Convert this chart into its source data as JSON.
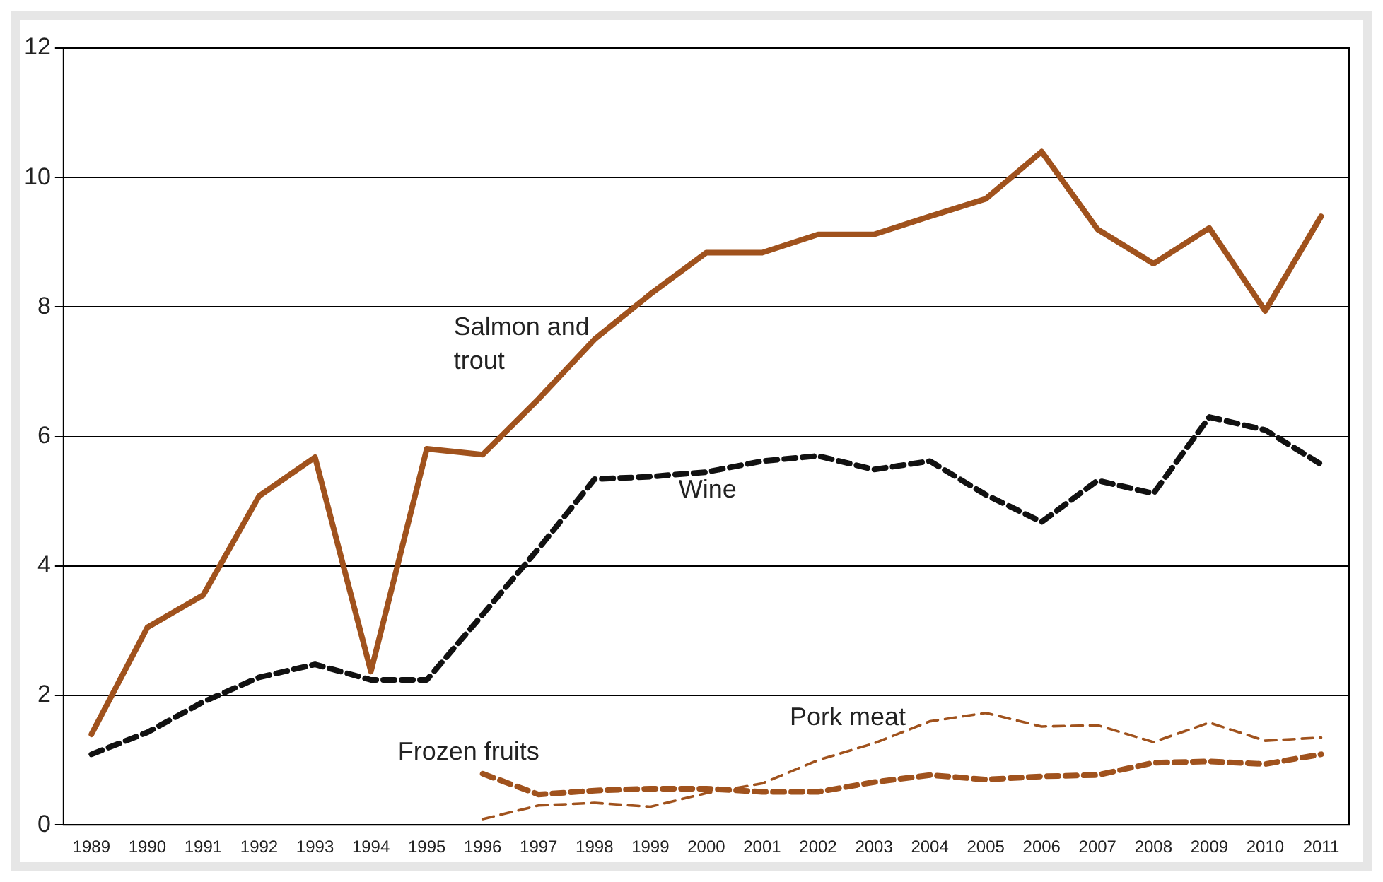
{
  "chart_data": {
    "type": "line",
    "categories": [
      "1989",
      "1990",
      "1991",
      "1992",
      "1993",
      "1994",
      "1995",
      "1996",
      "1997",
      "1998",
      "1999",
      "2000",
      "2001",
      "2002",
      "2003",
      "2004",
      "2005",
      "2006",
      "2007",
      "2008",
      "2009",
      "2010",
      "2011"
    ],
    "ylim": [
      0,
      12
    ],
    "yticks": [
      0,
      2,
      4,
      6,
      8,
      10,
      12
    ],
    "grid": "y",
    "legend": false,
    "marker": "none",
    "series": [
      {
        "name": "Salmon and trout",
        "color": "#a0521d",
        "line_style": "solid",
        "values": [
          1.4,
          3.05,
          3.55,
          5.08,
          5.68,
          2.37,
          5.81,
          5.72,
          6.58,
          7.5,
          8.2,
          8.84,
          8.84,
          9.12,
          9.12,
          9.4,
          9.67,
          10.4,
          9.2,
          8.67,
          9.22,
          7.94,
          9.4
        ]
      },
      {
        "name": "Wine",
        "color": "#111111",
        "line_style": "dashed",
        "values": [
          1.09,
          1.43,
          1.9,
          2.28,
          2.48,
          2.24,
          2.24,
          3.25,
          4.27,
          5.34,
          5.38,
          5.45,
          5.62,
          5.7,
          5.49,
          5.62,
          5.1,
          4.68,
          5.32,
          5.12,
          6.3,
          6.1,
          5.57
        ]
      },
      {
        "name": "Pork meat",
        "color": "#a0521d",
        "line_style": "dashed",
        "values": [
          null,
          null,
          null,
          null,
          null,
          null,
          null,
          0.09,
          0.3,
          0.34,
          0.28,
          0.49,
          0.64,
          1.0,
          1.26,
          1.6,
          1.73,
          1.52,
          1.54,
          1.28,
          1.58,
          1.3,
          1.35
        ]
      },
      {
        "name": "Frozen fruits",
        "color": "#a0521d",
        "line_style": "dashed",
        "values": [
          null,
          null,
          null,
          null,
          null,
          null,
          null,
          0.79,
          0.47,
          0.53,
          0.56,
          0.56,
          0.51,
          0.51,
          0.66,
          0.77,
          0.7,
          0.75,
          0.77,
          0.96,
          0.98,
          0.94,
          1.09
        ]
      }
    ]
  }
}
